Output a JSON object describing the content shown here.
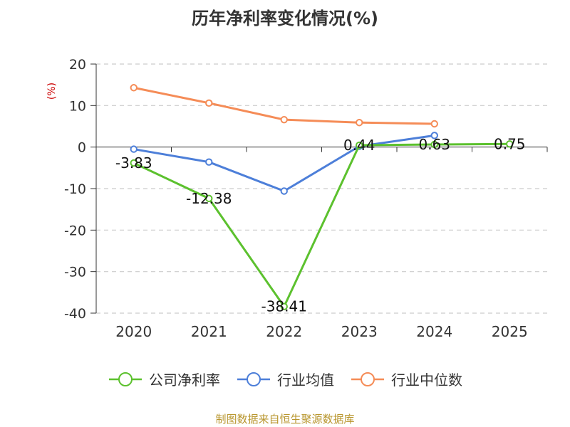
{
  "chart_data": {
    "type": "line",
    "title": "历年净利率变化情况(%)",
    "ylabel": "(%)",
    "categories": [
      "2020",
      "2021",
      "2022",
      "2023",
      "2024",
      "2025"
    ],
    "ylim": [
      -40,
      20
    ],
    "yticks": [
      20,
      10,
      0,
      -10,
      -20,
      -30,
      -40
    ],
    "grid": true,
    "legend_position": "bottom",
    "series": [
      {
        "name": "公司净利率",
        "color": "#5cc12e",
        "values": [
          -3.83,
          -12.38,
          -38.41,
          0.44,
          0.63,
          0.75
        ],
        "labels": [
          "-3.83",
          "-12.38",
          "-38.41",
          "0.44",
          "0.63",
          "0.75"
        ]
      },
      {
        "name": "行业均值",
        "color": "#4d7fd9",
        "values": [
          -0.5,
          -3.6,
          -10.6,
          0.2,
          2.8,
          null
        ]
      },
      {
        "name": "行业中位数",
        "color": "#f58c57",
        "values": [
          14.3,
          10.6,
          6.6,
          5.9,
          5.6,
          null
        ]
      }
    ]
  },
  "source": "制图数据来自恒生聚源数据库"
}
